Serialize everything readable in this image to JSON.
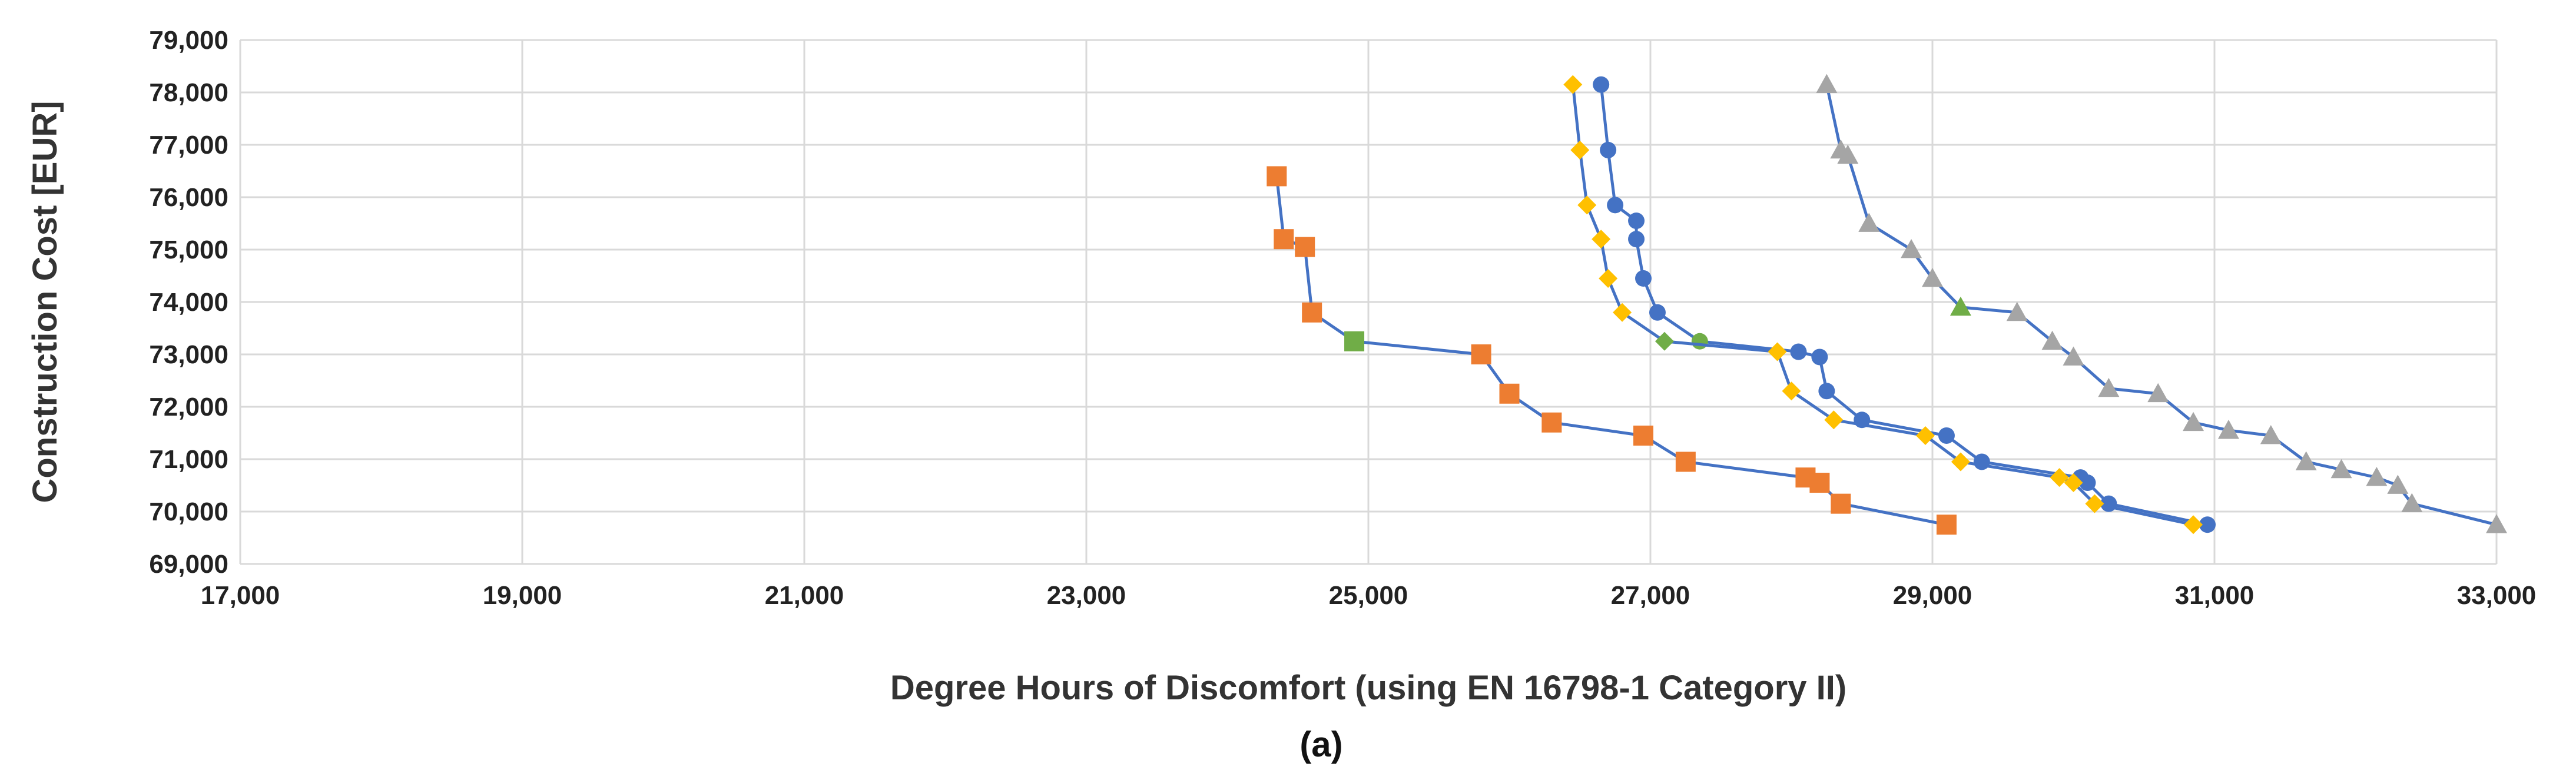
{
  "chart_data": {
    "type": "scatter",
    "title": "",
    "caption": "(a)",
    "xlabel": "Degree Hours of Discomfort (using EN 16798-1 Category II)",
    "ylabel": "Construction Cost [EUR]",
    "xlim": [
      17000,
      33000
    ],
    "ylim": [
      69000,
      79000
    ],
    "x_ticks": [
      17000,
      19000,
      21000,
      23000,
      25000,
      27000,
      29000,
      31000,
      33000
    ],
    "y_ticks": [
      69000,
      70000,
      71000,
      72000,
      73000,
      74000,
      75000,
      76000,
      77000,
      78000,
      79000
    ],
    "x_tick_labels": [
      "17,000",
      "19,000",
      "21,000",
      "23,000",
      "25,000",
      "27,000",
      "29,000",
      "31,000",
      "33,000"
    ],
    "y_tick_labels": [
      "69,000",
      "70,000",
      "71,000",
      "72,000",
      "73,000",
      "74,000",
      "75,000",
      "76,000",
      "77,000",
      "78,000",
      "79,000"
    ],
    "grid": true,
    "legend": "none",
    "line_color": "#4472C4",
    "series": [
      {
        "marker": "square",
        "color": "#ED7D31",
        "points": [
          [
            24350,
            76400
          ],
          [
            24400,
            75200
          ],
          [
            24550,
            75050
          ],
          [
            24600,
            73800
          ],
          [
            25800,
            73000
          ],
          [
            26000,
            72250
          ],
          [
            26300,
            71700
          ],
          [
            26950,
            71450
          ],
          [
            27250,
            70950
          ],
          [
            28100,
            70650
          ],
          [
            28200,
            70550
          ],
          [
            28350,
            70150
          ],
          [
            29100,
            69750
          ]
        ],
        "highlight": {
          "color": "#70AD47",
          "points": [
            [
              24900,
              73250
            ]
          ]
        }
      },
      {
        "marker": "circle",
        "color": "#4472C4",
        "points": [
          [
            26650,
            78150
          ],
          [
            26700,
            76900
          ],
          [
            26750,
            75850
          ],
          [
            26900,
            75550
          ],
          [
            26900,
            75200
          ],
          [
            26950,
            74450
          ],
          [
            27050,
            73800
          ],
          [
            28050,
            73050
          ],
          [
            28200,
            72950
          ],
          [
            28250,
            72300
          ],
          [
            28500,
            71750
          ],
          [
            29100,
            71450
          ],
          [
            29350,
            70950
          ],
          [
            30050,
            70650
          ],
          [
            30100,
            70550
          ],
          [
            30250,
            70150
          ],
          [
            30950,
            69750
          ]
        ],
        "highlight": {
          "color": "#70AD47",
          "points": [
            [
              27350,
              73250
            ]
          ]
        }
      },
      {
        "marker": "diamond",
        "color": "#FFC000",
        "points": [
          [
            26450,
            78150
          ],
          [
            26500,
            76900
          ],
          [
            26550,
            75850
          ],
          [
            26650,
            75200
          ],
          [
            26700,
            74450
          ],
          [
            26800,
            73800
          ],
          [
            27900,
            73050
          ],
          [
            28000,
            72300
          ],
          [
            28300,
            71750
          ],
          [
            28950,
            71450
          ],
          [
            29200,
            70950
          ],
          [
            29900,
            70650
          ],
          [
            30000,
            70550
          ],
          [
            30150,
            70150
          ],
          [
            30850,
            69750
          ]
        ],
        "highlight": {
          "color": "#70AD47",
          "points": [
            [
              27100,
              73250
            ]
          ]
        }
      },
      {
        "marker": "triangle",
        "color": "#A5A5A5",
        "points": [
          [
            28250,
            78150
          ],
          [
            28350,
            76900
          ],
          [
            28400,
            76800
          ],
          [
            28550,
            75500
          ],
          [
            28850,
            75000
          ],
          [
            29000,
            74450
          ],
          [
            29600,
            73800
          ],
          [
            29850,
            73250
          ],
          [
            30000,
            72950
          ],
          [
            30250,
            72350
          ],
          [
            30600,
            72250
          ],
          [
            30850,
            71700
          ],
          [
            31100,
            71550
          ],
          [
            31400,
            71450
          ],
          [
            31650,
            70950
          ],
          [
            31900,
            70800
          ],
          [
            32150,
            70650
          ],
          [
            32300,
            70500
          ],
          [
            32400,
            70150
          ],
          [
            33000,
            69750
          ]
        ],
        "highlight": {
          "color": "#70AD47",
          "points": [
            [
              29200,
              73900
            ]
          ]
        }
      }
    ]
  }
}
